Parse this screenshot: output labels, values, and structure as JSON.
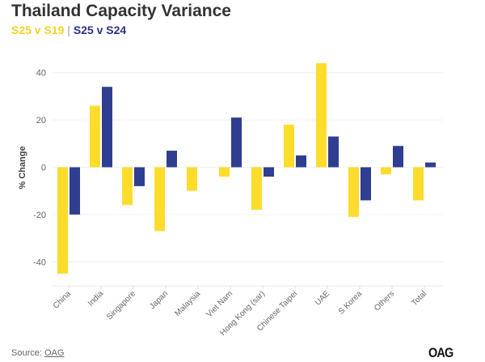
{
  "title": "Thailand Capacity Variance",
  "subtitle": {
    "series1": "S25 v S19",
    "separator": "|",
    "series2": "S25 v S24"
  },
  "source": {
    "label": "Source:",
    "link": "OAG"
  },
  "logo": "OAG",
  "chart_data": {
    "type": "bar",
    "title": "Thailand Capacity Variance",
    "xlabel": "",
    "ylabel": "% Change",
    "ylim": [
      -50,
      45
    ],
    "yticks": [
      -40,
      -20,
      0,
      20,
      40
    ],
    "grid": true,
    "categories": [
      "China",
      "India",
      "Singapore",
      "Japan",
      "Malaysia",
      "Viet Nam",
      "Hong Kong (sar)",
      "Chinese Taipei",
      "UAE",
      "S Korea",
      "Others",
      "Total"
    ],
    "series": [
      {
        "name": "S25 v S19",
        "color": "#fddc2c",
        "values": [
          -45,
          26,
          -16,
          -27,
          -10,
          -4,
          -18,
          18,
          44,
          -21,
          -3,
          -14
        ]
      },
      {
        "name": "S25 v S24",
        "color": "#2f3e91",
        "values": [
          -20,
          34,
          -8,
          7,
          null,
          21,
          -4,
          5,
          13,
          -14,
          9,
          2
        ]
      }
    ]
  }
}
